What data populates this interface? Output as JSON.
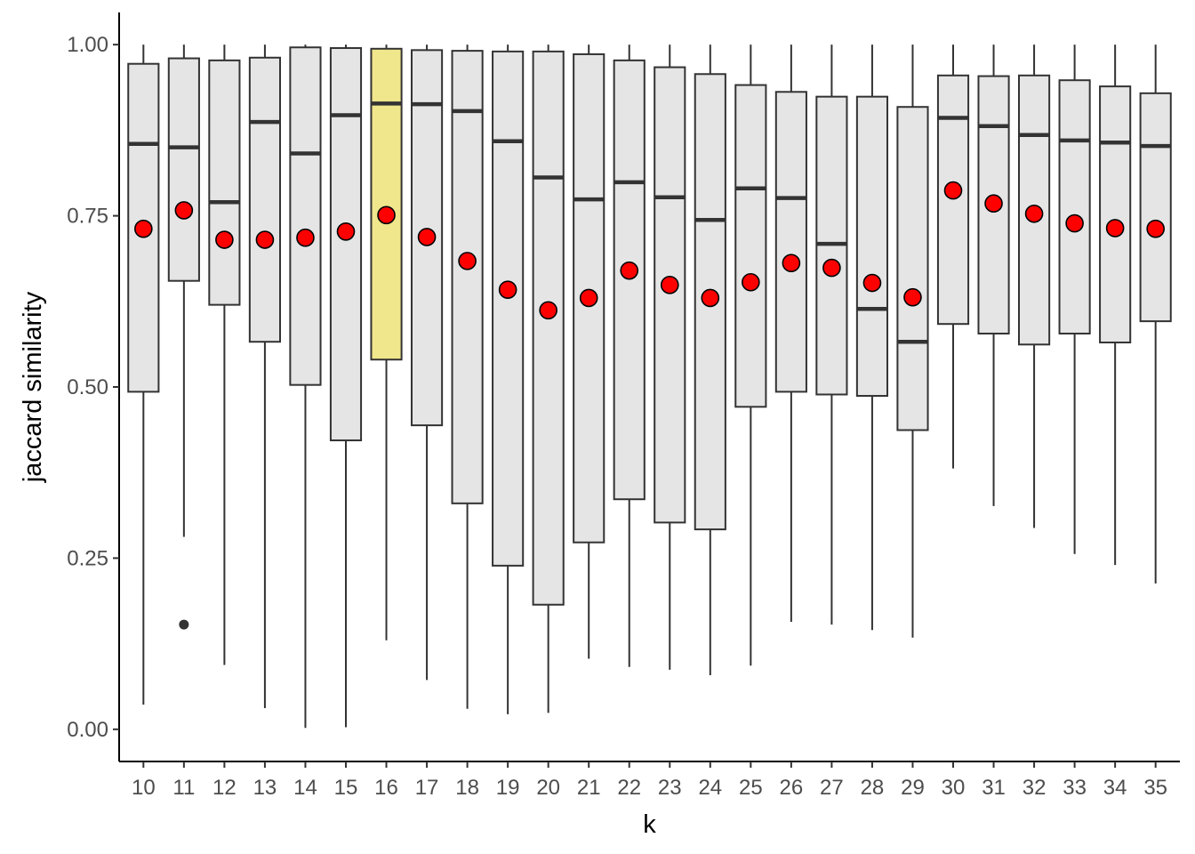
{
  "chart_data": {
    "type": "boxplot",
    "xlabel": "k",
    "ylabel": "jaccard similarity",
    "categories": [
      "10",
      "11",
      "12",
      "13",
      "14",
      "15",
      "16",
      "17",
      "18",
      "19",
      "20",
      "21",
      "22",
      "23",
      "24",
      "25",
      "26",
      "27",
      "28",
      "29",
      "30",
      "31",
      "32",
      "33",
      "34",
      "35"
    ],
    "ylim": [
      -0.047,
      1.047
    ],
    "yticks": [
      0.0,
      0.25,
      0.5,
      0.75,
      1.0
    ],
    "ytick_labels": [
      "0.00",
      "0.25",
      "0.50",
      "0.75",
      "1.00"
    ],
    "boxes": [
      {
        "k": "10",
        "whisker_low": 0.036,
        "q1": 0.493,
        "median": 0.855,
        "q3": 0.972,
        "whisker_high": 1.0,
        "mean": 0.731
      },
      {
        "k": "11",
        "whisker_low": 0.281,
        "q1": 0.655,
        "median": 0.85,
        "q3": 0.98,
        "whisker_high": 1.0,
        "mean": 0.758,
        "outliers": [
          0.153
        ]
      },
      {
        "k": "12",
        "whisker_low": 0.094,
        "q1": 0.62,
        "median": 0.77,
        "q3": 0.977,
        "whisker_high": 1.0,
        "mean": 0.715
      },
      {
        "k": "13",
        "whisker_low": 0.031,
        "q1": 0.566,
        "median": 0.887,
        "q3": 0.981,
        "whisker_high": 1.0,
        "mean": 0.715
      },
      {
        "k": "14",
        "whisker_low": 0.002,
        "q1": 0.503,
        "median": 0.841,
        "q3": 0.996,
        "whisker_high": 1.0,
        "mean": 0.718
      },
      {
        "k": "15",
        "whisker_low": 0.003,
        "q1": 0.422,
        "median": 0.897,
        "q3": 0.995,
        "whisker_high": 1.0,
        "mean": 0.727
      },
      {
        "k": "16",
        "whisker_low": 0.13,
        "q1": 0.54,
        "median": 0.914,
        "q3": 0.994,
        "whisker_high": 1.0,
        "mean": 0.751,
        "highlight": true
      },
      {
        "k": "17",
        "whisker_low": 0.072,
        "q1": 0.444,
        "median": 0.913,
        "q3": 0.992,
        "whisker_high": 1.0,
        "mean": 0.719
      },
      {
        "k": "18",
        "whisker_low": 0.03,
        "q1": 0.33,
        "median": 0.903,
        "q3": 0.991,
        "whisker_high": 1.0,
        "mean": 0.684
      },
      {
        "k": "19",
        "whisker_low": 0.022,
        "q1": 0.239,
        "median": 0.859,
        "q3": 0.99,
        "whisker_high": 1.0,
        "mean": 0.642
      },
      {
        "k": "20",
        "whisker_low": 0.024,
        "q1": 0.182,
        "median": 0.806,
        "q3": 0.99,
        "whisker_high": 1.0,
        "mean": 0.612
      },
      {
        "k": "21",
        "whisker_low": 0.103,
        "q1": 0.273,
        "median": 0.774,
        "q3": 0.986,
        "whisker_high": 1.0,
        "mean": 0.63
      },
      {
        "k": "22",
        "whisker_low": 0.091,
        "q1": 0.336,
        "median": 0.799,
        "q3": 0.977,
        "whisker_high": 1.0,
        "mean": 0.67
      },
      {
        "k": "23",
        "whisker_low": 0.087,
        "q1": 0.302,
        "median": 0.777,
        "q3": 0.967,
        "whisker_high": 1.0,
        "mean": 0.649
      },
      {
        "k": "24",
        "whisker_low": 0.079,
        "q1": 0.292,
        "median": 0.744,
        "q3": 0.957,
        "whisker_high": 1.0,
        "mean": 0.63
      },
      {
        "k": "25",
        "whisker_low": 0.093,
        "q1": 0.471,
        "median": 0.79,
        "q3": 0.941,
        "whisker_high": 1.0,
        "mean": 0.653
      },
      {
        "k": "26",
        "whisker_low": 0.157,
        "q1": 0.493,
        "median": 0.776,
        "q3": 0.931,
        "whisker_high": 1.0,
        "mean": 0.681
      },
      {
        "k": "27",
        "whisker_low": 0.153,
        "q1": 0.489,
        "median": 0.709,
        "q3": 0.924,
        "whisker_high": 1.0,
        "mean": 0.674
      },
      {
        "k": "28",
        "whisker_low": 0.145,
        "q1": 0.487,
        "median": 0.614,
        "q3": 0.924,
        "whisker_high": 1.0,
        "mean": 0.652
      },
      {
        "k": "29",
        "whisker_low": 0.134,
        "q1": 0.437,
        "median": 0.566,
        "q3": 0.909,
        "whisker_high": 1.0,
        "mean": 0.631
      },
      {
        "k": "30",
        "whisker_low": 0.381,
        "q1": 0.592,
        "median": 0.893,
        "q3": 0.955,
        "whisker_high": 1.0,
        "mean": 0.787
      },
      {
        "k": "31",
        "whisker_low": 0.326,
        "q1": 0.578,
        "median": 0.881,
        "q3": 0.954,
        "whisker_high": 1.0,
        "mean": 0.768
      },
      {
        "k": "32",
        "whisker_low": 0.294,
        "q1": 0.562,
        "median": 0.868,
        "q3": 0.955,
        "whisker_high": 1.0,
        "mean": 0.753
      },
      {
        "k": "33",
        "whisker_low": 0.256,
        "q1": 0.578,
        "median": 0.86,
        "q3": 0.948,
        "whisker_high": 1.0,
        "mean": 0.739
      },
      {
        "k": "34",
        "whisker_low": 0.24,
        "q1": 0.565,
        "median": 0.857,
        "q3": 0.939,
        "whisker_high": 1.0,
        "mean": 0.732
      },
      {
        "k": "35",
        "whisker_low": 0.213,
        "q1": 0.596,
        "median": 0.852,
        "q3": 0.929,
        "whisker_high": 1.0,
        "mean": 0.731
      }
    ],
    "colors": {
      "box_fill": "#e5e5e5",
      "highlight_fill": "#f0e68c",
      "box_stroke": "#333333",
      "mean_point": "#ff0000",
      "mean_point_stroke": "#000000",
      "outlier": "#333333"
    },
    "grid": false,
    "legend": "none"
  }
}
